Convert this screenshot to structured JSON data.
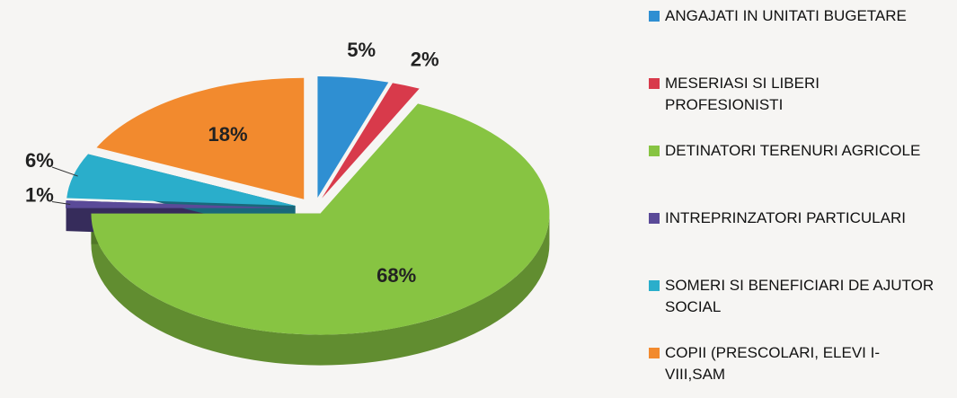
{
  "chart_data": {
    "type": "pie",
    "categories": [
      "ANGAJATI IN UNITATI BUGETARE",
      "MESERIASI SI LIBERI PROFESIONISTI",
      "DETINATORI TERENURI AGRICOLE",
      "INTREPRINZATORI PARTICULARI",
      "SOMERI SI BENEFICIARI DE AJUTOR SOCIAL",
      "COPII (PRESCOLARI, ELEVI I-VIII,SAM"
    ],
    "values": [
      5,
      2,
      68,
      1,
      6,
      18
    ],
    "value_labels": [
      "5%",
      "2%",
      "68%",
      "1%",
      "6%",
      "18%"
    ],
    "colors": [
      "#2f8fd2",
      "#d83a4b",
      "#87c442",
      "#5a4a98",
      "#2aaecb",
      "#f28a2e"
    ]
  }
}
